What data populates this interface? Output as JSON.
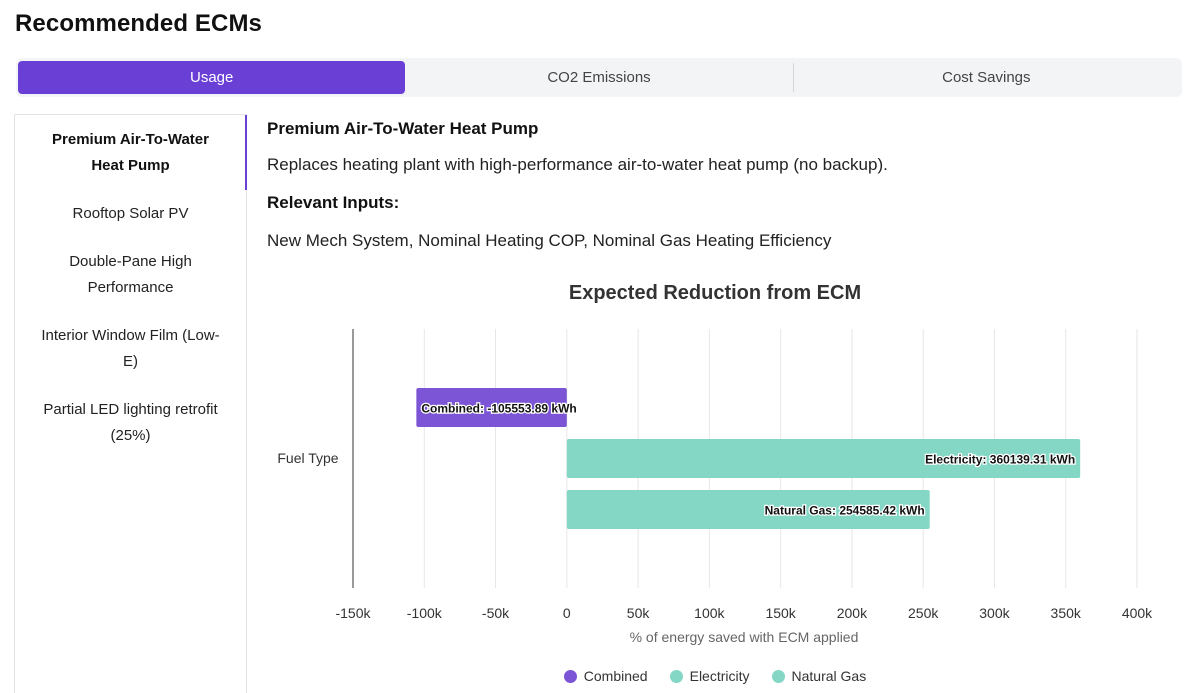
{
  "page": {
    "title": "Recommended ECMs"
  },
  "tabs": [
    {
      "label": "Usage",
      "active": true
    },
    {
      "label": "CO2 Emissions",
      "active": false
    },
    {
      "label": "Cost Savings",
      "active": false
    }
  ],
  "sidebar": {
    "items": [
      {
        "label": "Premium Air-To-Water Heat Pump",
        "active": true
      },
      {
        "label": "Rooftop Solar PV",
        "active": false
      },
      {
        "label": "Double-Pane High Performance",
        "active": false
      },
      {
        "label": "Interior Window Film (Low-E)",
        "active": false
      },
      {
        "label": "Partial LED lighting retrofit (25%)",
        "active": false
      }
    ]
  },
  "detail": {
    "title": "Premium Air-To-Water Heat Pump",
    "description": "Replaces heating plant with high-performance air-to-water heat pump (no backup).",
    "inputs_heading": "Relevant Inputs:",
    "inputs": "New Mech System, Nominal Heating COP, Nominal Gas Heating Efficiency"
  },
  "chart_data": {
    "type": "bar",
    "orientation": "horizontal",
    "title": "Expected Reduction from ECM",
    "xlabel": "% of energy saved with ECM applied",
    "categories": [
      "Fuel Type"
    ],
    "xlim": [
      -150000,
      400000
    ],
    "xticks": [
      -150000,
      -100000,
      -50000,
      0,
      50000,
      100000,
      150000,
      200000,
      250000,
      300000,
      350000,
      400000
    ],
    "xtick_labels": [
      "-150k",
      "-100k",
      "-50k",
      "0",
      "50k",
      "100k",
      "150k",
      "200k",
      "250k",
      "300k",
      "350k",
      "400k"
    ],
    "grid": true,
    "legend": "bottom",
    "series": [
      {
        "name": "Combined",
        "values": [
          -105553.89
        ],
        "label": "Combined: -105553.89 kWh",
        "color": "#7c55d6"
      },
      {
        "name": "Electricity",
        "values": [
          360139.31
        ],
        "label": "Electricity: 360139.31 kWh",
        "color": "#84d6c5"
      },
      {
        "name": "Natural Gas",
        "values": [
          254585.42
        ],
        "label": "Natural Gas: 254585.42 kWh",
        "color": "#84d6c5"
      }
    ]
  }
}
